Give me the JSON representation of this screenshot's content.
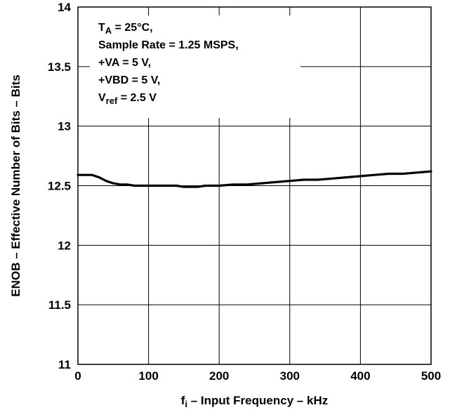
{
  "chart_data": {
    "type": "line",
    "xlabel": {
      "main": "f",
      "sub": "i",
      "rest": " – Input Frequency – kHz"
    },
    "ylabel": "ENOB – Effective Number of Bits – Bits",
    "xlim": [
      0,
      500
    ],
    "ylim": [
      11,
      14
    ],
    "xticks": [
      0,
      100,
      200,
      300,
      400,
      500
    ],
    "xtick_labels": [
      "0",
      "100",
      "200",
      "300",
      "400",
      "500"
    ],
    "yticks": [
      11,
      11.5,
      12,
      12.5,
      13,
      13.5,
      14
    ],
    "ytick_labels": [
      "11",
      "11.5",
      "12",
      "12.5",
      "13",
      "13.5",
      "14"
    ],
    "grid": true,
    "annotations": [
      {
        "main": "T",
        "sub": "A",
        "rest": " = 25°C,"
      },
      {
        "main": "Sample Rate = 1.25 MSPS,",
        "sub": "",
        "rest": ""
      },
      {
        "main": "+VA = 5 V,",
        "sub": "",
        "rest": ""
      },
      {
        "main": "+VBD = 5 V,",
        "sub": "",
        "rest": ""
      },
      {
        "main": "V",
        "sub": "ref",
        "rest": " = 2.5 V"
      }
    ],
    "series": [
      {
        "x": [
          0,
          10,
          20,
          30,
          40,
          50,
          60,
          70,
          80,
          100,
          120,
          140,
          150,
          160,
          170,
          180,
          200,
          220,
          240,
          260,
          280,
          300,
          320,
          340,
          360,
          380,
          400,
          420,
          440,
          460,
          480,
          500
        ],
        "y": [
          12.59,
          12.59,
          12.59,
          12.57,
          12.54,
          12.52,
          12.51,
          12.51,
          12.5,
          12.5,
          12.5,
          12.5,
          12.49,
          12.49,
          12.49,
          12.5,
          12.5,
          12.51,
          12.51,
          12.52,
          12.53,
          12.54,
          12.55,
          12.55,
          12.56,
          12.57,
          12.58,
          12.59,
          12.6,
          12.6,
          12.61,
          12.62
        ]
      }
    ]
  }
}
